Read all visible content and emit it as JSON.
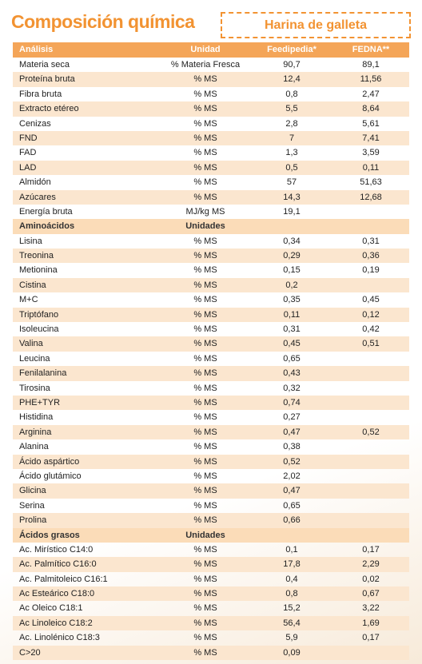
{
  "header": {
    "title": "Composición química",
    "product": "Harina de galleta"
  },
  "table": {
    "columns": [
      "Análisis",
      "Unidad",
      "Feedipedia*",
      "FEDNA**"
    ],
    "groups": [
      {
        "rows": [
          [
            "Materia seca",
            "% Materia Fresca",
            "90,7",
            "89,1"
          ],
          [
            "Proteína bruta",
            "% MS",
            "12,4",
            "11,56"
          ],
          [
            "Fibra bruta",
            "% MS",
            "0,8",
            "2,47"
          ],
          [
            "Extracto etéreo",
            "% MS",
            "5,5",
            "8,64"
          ],
          [
            "Cenizas",
            "% MS",
            "2,8",
            "5,61"
          ],
          [
            "FND",
            "% MS",
            "7",
            "7,41"
          ],
          [
            "FAD",
            "% MS",
            "1,3",
            "3,59"
          ],
          [
            "LAD",
            "% MS",
            "0,5",
            "0,11"
          ],
          [
            "Almidón",
            "% MS",
            "57",
            "51,63"
          ],
          [
            "Azúcares",
            "% MS",
            "14,3",
            "12,68"
          ],
          [
            "Energía bruta",
            "MJ/kg MS",
            "19,1"
          ]
        ]
      },
      {
        "title": "Aminoácidos",
        "unit": "Unidades",
        "rows": [
          [
            "Lisina",
            "% MS",
            "0,34",
            "0,31"
          ],
          [
            "Treonina",
            "% MS",
            "0,29",
            "0,36"
          ],
          [
            "Metionina",
            "% MS",
            "0,15",
            "0,19"
          ],
          [
            "Cistina",
            "% MS",
            "0,2"
          ],
          [
            "M+C",
            "% MS",
            "0,35",
            "0,45"
          ],
          [
            "Triptófano",
            "% MS",
            "0,11",
            "0,12"
          ],
          [
            "Isoleucina",
            "% MS",
            "0,31",
            "0,42"
          ],
          [
            "Valina",
            "% MS",
            "0,45",
            "0,51"
          ],
          [
            "Leucina",
            "% MS",
            "0,65"
          ],
          [
            "Fenilalanina",
            "% MS",
            "0,43"
          ],
          [
            "Tirosina",
            "% MS",
            "0,32"
          ],
          [
            "PHE+TYR",
            "% MS",
            "0,74"
          ],
          [
            "Histidina",
            "% MS",
            "0,27"
          ],
          [
            "Arginina",
            "% MS",
            "0,47",
            "0,52"
          ],
          [
            "Alanina",
            "% MS",
            "0,38"
          ],
          [
            "Ácido aspártico",
            "% MS",
            "0,52"
          ],
          [
            "Ácido glutámico",
            "% MS",
            "2,02"
          ],
          [
            "Glicina",
            "% MS",
            "0,47"
          ],
          [
            "Serina",
            "% MS",
            "0,65"
          ],
          [
            "Prolina",
            "% MS",
            "0,66"
          ]
        ]
      },
      {
        "title": "Ácidos grasos",
        "unit": "Unidades",
        "rows": [
          [
            "Ac. Mirístico C14:0",
            "% MS",
            "0,1",
            "0,17"
          ],
          [
            "Ac. Palmítico C16:0",
            "% MS",
            "17,8",
            "2,29"
          ],
          [
            "Ac. Palmitoleico C16:1",
            "% MS",
            "0,4",
            "0,02"
          ],
          [
            "Ac Esteárico C18:0",
            "% MS",
            "0,8",
            "0,67"
          ],
          [
            "Ac Oleico C18:1",
            "% MS",
            "15,2",
            "3,22"
          ],
          [
            "Ac Linoleico C18:2",
            "% MS",
            "56,4",
            "1,69"
          ],
          [
            "Ac. Linolénico C18:3",
            "% MS",
            "5,9",
            "0,17"
          ],
          [
            "C>20",
            "% MS",
            "0,09"
          ]
        ]
      }
    ]
  }
}
